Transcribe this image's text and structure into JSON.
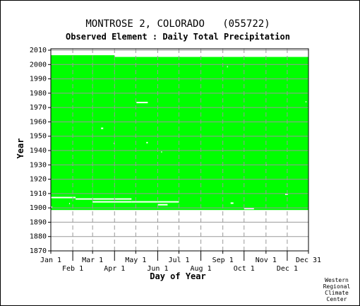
{
  "chart_data": {
    "type": "heatmap",
    "title": "MONTROSE 2, COLORADO   (055722)",
    "subtitle": "Observed Element : Daily Total Precipitation",
    "xlabel": "Day of Year",
    "ylabel": "Year",
    "credit": [
      "Western",
      "Regional",
      "Climate",
      "Center"
    ],
    "xlim": [
      1,
      365
    ],
    "ylim": [
      1870,
      2011
    ],
    "x_ticks_upper": [
      {
        "label": "Jan 1",
        "day": 1
      },
      {
        "label": "Mar 1",
        "day": 60
      },
      {
        "label": "May 1",
        "day": 121
      },
      {
        "label": "Jul 1",
        "day": 182
      },
      {
        "label": "Sep 1",
        "day": 244
      },
      {
        "label": "Nov 1",
        "day": 305
      },
      {
        "label": "Dec 31",
        "day": 365
      }
    ],
    "x_ticks_lower": [
      {
        "label": "Feb 1",
        "day": 32
      },
      {
        "label": "Apr 1",
        "day": 91
      },
      {
        "label": "Jun 1",
        "day": 152
      },
      {
        "label": "Aug 1",
        "day": 213
      },
      {
        "label": "Oct 1",
        "day": 274
      },
      {
        "label": "Dec 1",
        "day": 335
      }
    ],
    "y_ticks": [
      2010,
      2000,
      1990,
      1980,
      1970,
      1960,
      1950,
      1940,
      1930,
      1920,
      1910,
      1900,
      1890,
      1880,
      1870
    ],
    "data_color": "#00ff00",
    "missing_color": "#ffffff",
    "coverage": [
      {
        "from_day": 1,
        "to_day": 60,
        "from_year": 1898.5,
        "to_year": 2006.5
      },
      {
        "from_day": 60,
        "to_day": 91,
        "from_year": 1898.5,
        "to_year": 2006.5
      },
      {
        "from_day": 91,
        "to_day": 365,
        "from_year": 1898.5,
        "to_year": 2005.3
      }
    ],
    "missing": [
      {
        "from_day": 1,
        "to_day": 36,
        "year": 1907.2
      },
      {
        "from_day": 36,
        "to_day": 115,
        "year": 1906.2
      },
      {
        "from_day": 60,
        "to_day": 115,
        "year": 1904.2
      },
      {
        "from_day": 115,
        "to_day": 182,
        "year": 1904.2
      },
      {
        "from_day": 122,
        "to_day": 138,
        "year": 1973.5
      },
      {
        "from_day": 72,
        "to_day": 75,
        "year": 1955.5
      },
      {
        "from_day": 136,
        "to_day": 138,
        "year": 1945.5
      },
      {
        "from_day": 152,
        "to_day": 166,
        "year": 1902.2
      },
      {
        "from_day": 255,
        "to_day": 259,
        "year": 1903.3
      },
      {
        "from_day": 274,
        "to_day": 288,
        "year": 1899.5
      },
      {
        "from_day": 332,
        "to_day": 336,
        "year": 1909.5
      },
      {
        "from_day": 1,
        "to_day": 3,
        "year": 1900.5
      },
      {
        "from_day": 27,
        "to_day": 28,
        "year": 1903.0
      },
      {
        "from_day": 90,
        "to_day": 91,
        "year": 1945.0
      },
      {
        "from_day": 157,
        "to_day": 158,
        "year": 1939.0
      },
      {
        "from_day": 250,
        "to_day": 251,
        "year": 1998.5
      },
      {
        "from_day": 305,
        "to_day": 306,
        "year": 1930.0
      },
      {
        "from_day": 361,
        "to_day": 362,
        "year": 1974.0
      }
    ]
  }
}
